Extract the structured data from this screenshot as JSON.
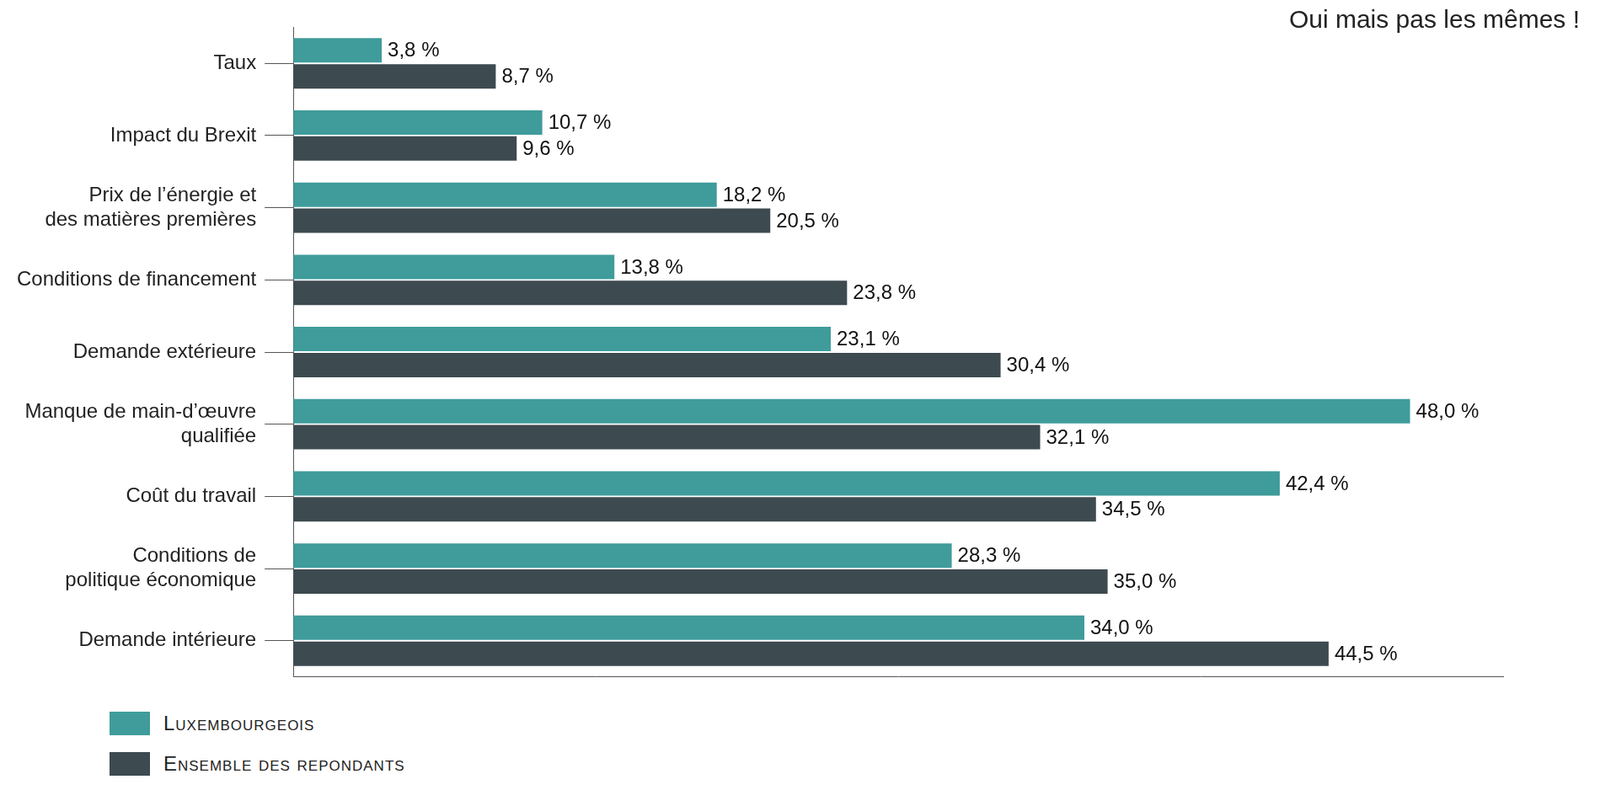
{
  "chart_data": {
    "type": "bar",
    "title": "Oui mais pas les mêmes !",
    "orientation": "horizontal",
    "categories": [
      "Taux",
      "Impact du Brexit",
      "Prix de l’énergie et des matières premières",
      "Conditions de financement",
      "Demande extérieure",
      "Manque de main-d’œuvre qualifiée",
      "Coût du travail",
      "Conditions de politique économique",
      "Demande intérieure"
    ],
    "series": [
      {
        "name": "Luxembourgeois",
        "color": "#3f9c9b",
        "values": [
          3.8,
          10.7,
          18.2,
          13.8,
          23.1,
          48.0,
          42.4,
          28.3,
          34.0
        ],
        "value_labels": [
          "3,8 %",
          "10,7 %",
          "18,2 %",
          "13,8 %",
          "23,1 %",
          "48,0 %",
          "42,4 %",
          "28,3 %",
          "34,0 %"
        ]
      },
      {
        "name": "Ensemble des repondants",
        "color": "#3d4a4f",
        "values": [
          8.7,
          9.6,
          20.5,
          23.8,
          30.4,
          32.1,
          34.5,
          35.0,
          44.5
        ],
        "value_labels": [
          "8,7 %",
          "9,6 %",
          "20,5 %",
          "23,8 %",
          "30,4 %",
          "32,1 %",
          "34,5 %",
          "35,0 %",
          "44,5 %"
        ]
      }
    ],
    "xlim": [
      0,
      52
    ],
    "grid": false,
    "legend": "bottom-left",
    "data_labels": true,
    "tick_labels": "y"
  }
}
